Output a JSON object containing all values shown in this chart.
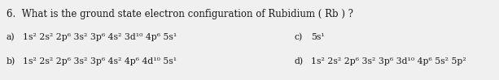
{
  "background_color": "#f0f0f0",
  "title_line": "6.  What is the ground state electron configuration of Rubidium ( Rb ) ?",
  "option_a_label": "a)",
  "option_a_text": "1s² 2s² 2p⁶ 3s² 3p⁶ 4s² 3d¹⁰ 4p⁶ 5s¹",
  "option_c_label": "c)",
  "option_c_text": "5s¹",
  "option_b_label": "b)",
  "option_b_text": "1s² 2s² 2p⁶ 3s² 3p⁶ 4s² 4p⁶ 4d¹⁰ 5s¹",
  "option_d_label": "d)",
  "option_d_text": "1s² 2s² 2p⁶ 3s² 3p⁶ 3d¹⁰ 4p⁶ 5s² 5p²",
  "font_size_title": 8.5,
  "font_size_options": 7.8,
  "text_color": "#1a1a1a"
}
